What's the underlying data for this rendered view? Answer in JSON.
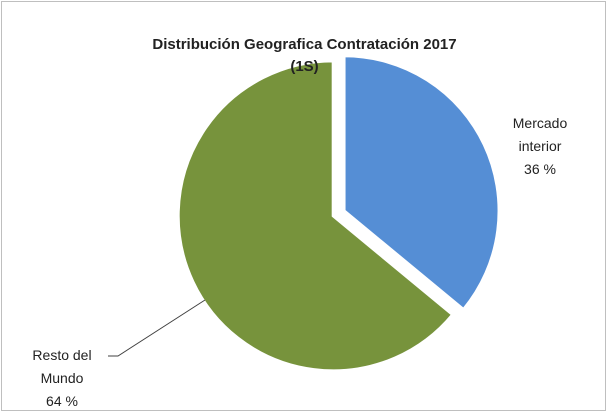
{
  "chart_data": {
    "type": "pie",
    "title": "Distribución Geografica Contratación 2017",
    "subtitle": "(1S)",
    "categories": [
      "Mercado interior",
      "Resto del Mundo"
    ],
    "values": [
      36,
      64
    ],
    "value_labels": [
      "36 %",
      "64 %"
    ],
    "colors": [
      "#558ed5",
      "#77933c"
    ]
  }
}
